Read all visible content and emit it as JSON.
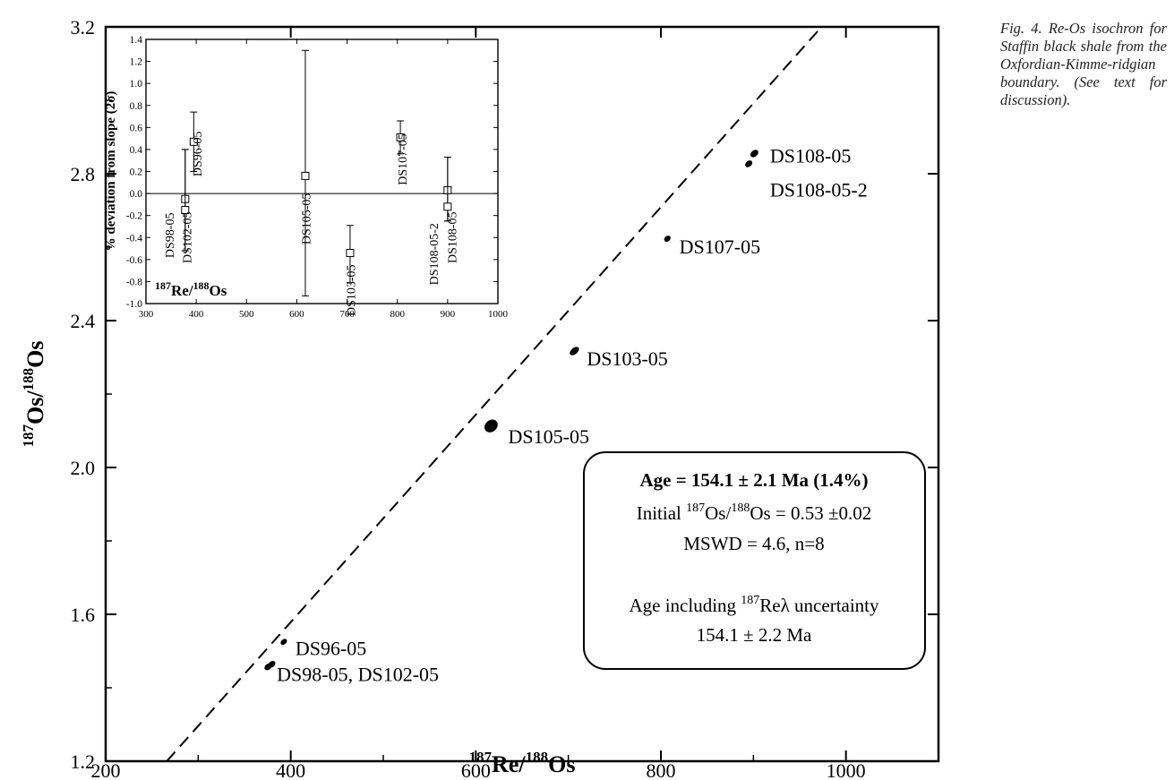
{
  "caption": "Fig. 4. Re-Os isochron for Staffin black shale from the Oxfordian-Kimme-ridgian boundary. (See text for discussion).",
  "chart_data": [
    {
      "type": "scatter",
      "name": "main-isochron",
      "xlabel": {
        "sup1": "187",
        "base1": "Re/",
        "sup2": "188",
        "base2": "Os"
      },
      "ylabel": {
        "sup1": "187",
        "base1": "Os/",
        "sup2": "188",
        "base2": "Os"
      },
      "xlim": [
        200,
        1100
      ],
      "ylim": [
        1.2,
        3.2
      ],
      "x_ticks": [
        200,
        400,
        600,
        800,
        1000
      ],
      "x_tick_labels": [
        "200",
        "400",
        "600",
        "800",
        "1000"
      ],
      "y_ticks": [
        1.2,
        1.6,
        2.0,
        2.4,
        2.8,
        3.2
      ],
      "y_tick_labels": [
        "1.2",
        "1.6",
        "2.0",
        "2.4",
        "2.8",
        "3.2"
      ],
      "grid": false,
      "points": [
        {
          "x": 375.5,
          "y": 1.457,
          "rx": 4.5,
          "ry": 3.2,
          "id": "DS98-05"
        },
        {
          "x": 379.5,
          "y": 1.464,
          "rx": 4.5,
          "ry": 3.2,
          "id": "DS102-05"
        },
        {
          "x": 392.5,
          "y": 1.525,
          "rx": 4,
          "ry": 2.8,
          "id": "DS96-05"
        },
        {
          "x": 616.5,
          "y": 2.113,
          "rx": 8,
          "ry": 6.5,
          "id": "DS105-05"
        },
        {
          "x": 706.5,
          "y": 2.317,
          "rx": 6,
          "ry": 3.5,
          "id": "DS103-05"
        },
        {
          "x": 807,
          "y": 2.623,
          "rx": 4,
          "ry": 3,
          "id": "DS107-05"
        },
        {
          "x": 895,
          "y": 2.827,
          "rx": 4.5,
          "ry": 3.2,
          "id": "DS108-05-2"
        },
        {
          "x": 901,
          "y": 2.855,
          "rx": 5,
          "ry": 3.5,
          "id": "DS108-05"
        }
      ],
      "point_labels": [
        {
          "text": "DS108-05",
          "x": 918,
          "y": 2.85
        },
        {
          "text": "DS108-05-2",
          "x": 918,
          "y": 2.757
        },
        {
          "text": "DS107-05",
          "x": 820,
          "y": 2.602
        },
        {
          "text": "DS103-05",
          "x": 720,
          "y": 2.298
        },
        {
          "text": "DS105-05",
          "x": 635,
          "y": 2.085
        },
        {
          "text": "DS96-05",
          "x": 405,
          "y": 1.508
        },
        {
          "text": "DS98-05, DS102-05",
          "x": 385,
          "y": 1.438
        }
      ],
      "isochron_line": {
        "x1": 266,
        "y1": 1.2,
        "x2": 1094,
        "y2": 3.54,
        "style": "dashed"
      },
      "annotation": {
        "age_line": "Age = 154.1 ± 2.1 Ma (1.4%)",
        "initial_prefix": "Initial ",
        "initial_sup1": "187",
        "initial_mid": "Os/",
        "initial_sup2": "188",
        "initial_suffix": "Os = 0.53 ±0.02",
        "mswd": "MSWD = 4.6, n=8",
        "age_incl_prefix": "Age including ",
        "age_incl_sup": "187",
        "age_incl_suffix": "Reλ uncertainty",
        "age_incl_value": "154.1 ± 2.2 Ma"
      }
    },
    {
      "type": "scatter",
      "name": "inset-deviation",
      "ylabel": "% deviation from slope (2σ)",
      "xlabel": {
        "sup1": "187",
        "base1": "Re/",
        "sup2": "188",
        "base2": "Os"
      },
      "xlim": [
        300,
        1000
      ],
      "ylim": [
        -1.0,
        1.4
      ],
      "x_ticks": [
        300,
        400,
        500,
        600,
        700,
        800,
        900,
        1000
      ],
      "x_tick_labels": [
        "300",
        "400",
        "500",
        "600",
        "700",
        "800",
        "900",
        "1000"
      ],
      "y_ticks": [
        -1.0,
        -0.8,
        -0.6,
        -0.4,
        -0.2,
        0.0,
        0.2,
        0.4,
        0.6,
        0.8,
        1.0,
        1.2,
        1.4
      ],
      "y_tick_labels": [
        "-1.0",
        "-0.8",
        "-0.6",
        "-0.4",
        "-0.2",
        "0.0",
        "0.2",
        "0.4",
        "0.6",
        "0.8",
        "1.0",
        "1.2",
        "1.4"
      ],
      "zero_line": 0.0,
      "points": [
        {
          "id": "DS98-05",
          "x": 378,
          "y": -0.05,
          "err_lo": -0.52,
          "err_hi": 0.4,
          "label_x": 355,
          "label_y": -0.38
        },
        {
          "id": "DS102-05",
          "x": 378,
          "y": -0.15,
          "err_lo": -0.52,
          "err_hi": 0.4,
          "label_x": 390,
          "label_y": -0.4
        },
        {
          "id": "DS96-05",
          "x": 395,
          "y": 0.47,
          "err_lo": 0.2,
          "err_hi": 0.74,
          "label_x": 410,
          "label_y": 0.36
        },
        {
          "id": "DS105-05",
          "x": 617,
          "y": 0.16,
          "err_lo": -0.93,
          "err_hi": 1.3,
          "label_x": 627,
          "label_y": -0.23
        },
        {
          "id": "DS103-05",
          "x": 706,
          "y": -0.54,
          "err_lo": -0.81,
          "err_hi": -0.29,
          "label_x": 716,
          "label_y": -0.88
        },
        {
          "id": "DS107-05",
          "x": 806,
          "y": 0.51,
          "err_lo": 0.36,
          "err_hi": 0.66,
          "label_x": 818,
          "label_y": 0.31
        },
        {
          "id": "DS108-05-2",
          "x": 900,
          "y": 0.03,
          "err_lo": -0.25,
          "err_hi": 0.33,
          "label_x": 881,
          "label_y": -0.55
        },
        {
          "id": "DS108-05",
          "x": 900,
          "y": -0.12,
          "err_lo": -0.25,
          "err_hi": 0.33,
          "label_x": 917,
          "label_y": -0.4
        }
      ]
    }
  ]
}
